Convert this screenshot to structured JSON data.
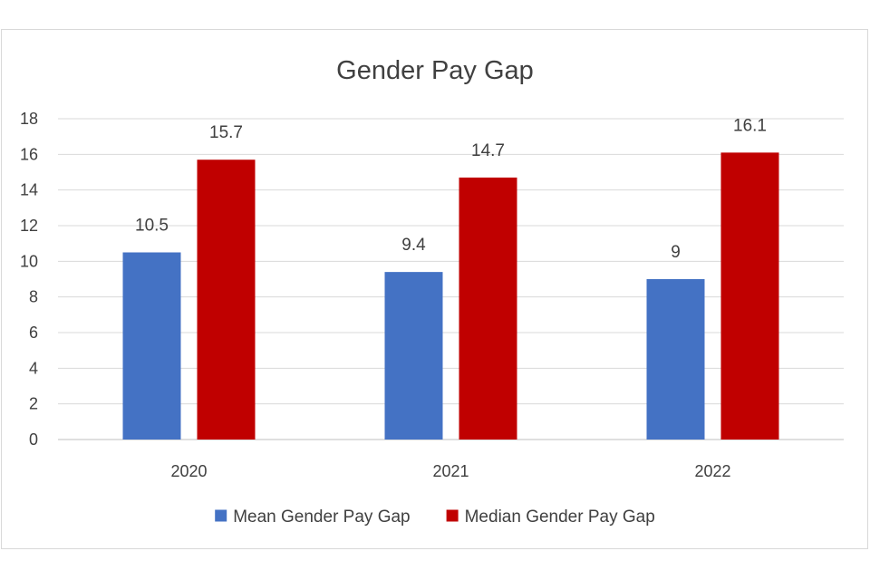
{
  "chart_data": {
    "type": "bar",
    "title": "Gender Pay Gap",
    "categories": [
      "2020",
      "2021",
      "2022"
    ],
    "series": [
      {
        "name": "Mean Gender Pay Gap",
        "values": [
          10.5,
          9.4,
          9
        ],
        "labels": [
          "10.5",
          "9.4",
          "9"
        ],
        "color": "#4472c4"
      },
      {
        "name": "Median Gender Pay Gap",
        "values": [
          15.7,
          14.7,
          16.1
        ],
        "labels": [
          "15.7",
          "14.7",
          "16.1"
        ],
        "color": "#c00000"
      }
    ],
    "ylim": [
      0,
      18
    ],
    "yticks": [
      "0",
      "2",
      "4",
      "6",
      "8",
      "10",
      "12",
      "14",
      "16",
      "18"
    ],
    "grid": true,
    "legend_position": "bottom"
  }
}
